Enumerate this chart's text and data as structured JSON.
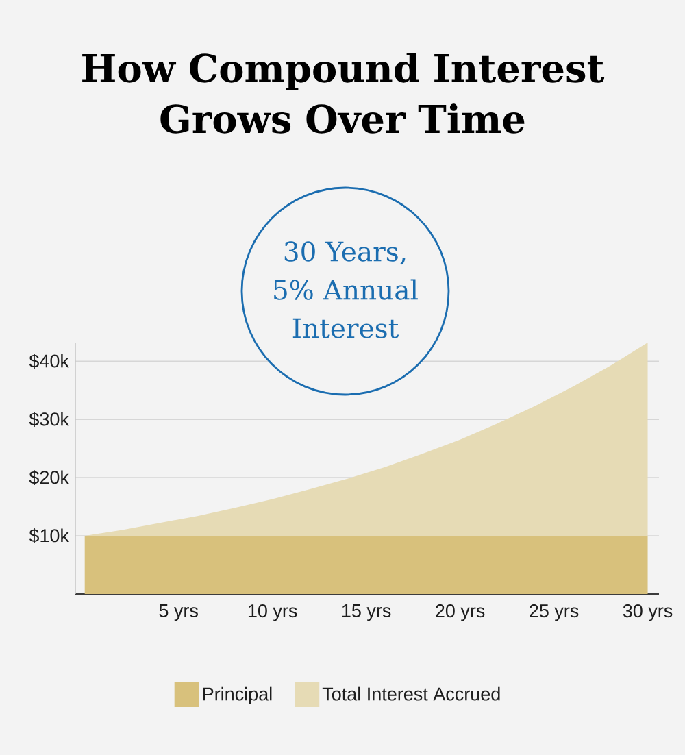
{
  "chart_data": {
    "type": "area",
    "title": "How Compound Interest Grows Over Time",
    "annotations": [
      "30 Years, 5% Annual Interest"
    ],
    "x": [
      0,
      2,
      4,
      6,
      8,
      10,
      12,
      14,
      16,
      18,
      20,
      22,
      24,
      26,
      28,
      30
    ],
    "stacked": true,
    "series": [
      {
        "name": "Principal",
        "color": "#d8c17c",
        "values": [
          10000,
          10000,
          10000,
          10000,
          10000,
          10000,
          10000,
          10000,
          10000,
          10000,
          10000,
          10000,
          10000,
          10000,
          10000,
          10000
        ]
      },
      {
        "name": "Total Interest Accrued",
        "color": "#e6dbb5",
        "values": [
          0,
          1000,
          2200,
          3400,
          4800,
          6300,
          8000,
          9800,
          11800,
          14100,
          16500,
          19300,
          22300,
          25600,
          29200,
          33200
        ]
      }
    ],
    "xlim": [
      -0.5,
      30.6
    ],
    "xticks": [
      {
        "value": 5,
        "label": "5 yrs"
      },
      {
        "value": 10,
        "label": "10 yrs"
      },
      {
        "value": 15,
        "label": "15 yrs"
      },
      {
        "value": 20,
        "label": "20 yrs"
      },
      {
        "value": 25,
        "label": "25 yrs"
      },
      {
        "value": 30,
        "label": "30 yrs"
      }
    ],
    "ylim": [
      0,
      43200
    ],
    "yticks": [
      {
        "value": 10000,
        "label": "$10k"
      },
      {
        "value": 20000,
        "label": "$20k"
      },
      {
        "value": 30000,
        "label": "$30k"
      },
      {
        "value": 40000,
        "label": "$40k"
      }
    ],
    "grid": "y",
    "legend": "bottom"
  }
}
